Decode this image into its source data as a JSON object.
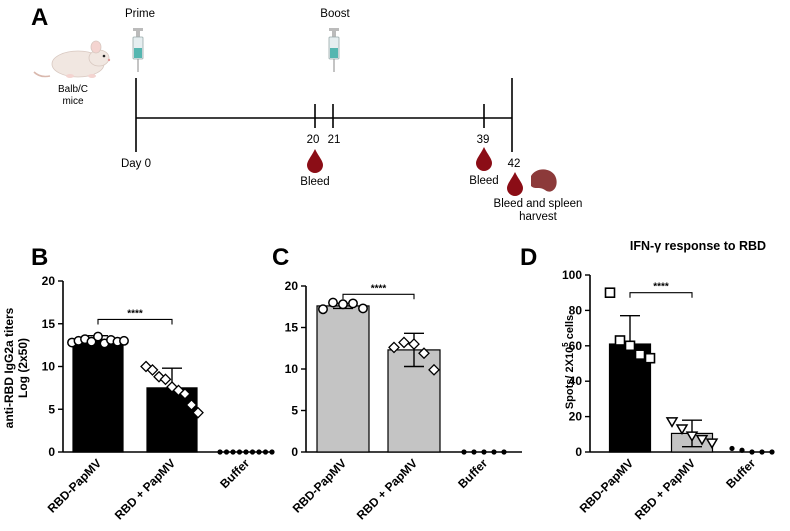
{
  "panels": {
    "A": "A",
    "B": "B",
    "C": "C",
    "D": "D"
  },
  "timeline": {
    "mouse_label_line1": "Balb/C",
    "mouse_label_line2": "mice",
    "prime": "Prime",
    "boost": "Boost",
    "day0": "Day 0",
    "d20": "20",
    "d21": "21",
    "d39": "39",
    "d42": "42",
    "bleed1": "Bleed",
    "bleed2": "Bleed",
    "final_line1": "Bleed and spleen",
    "final_line2": "harvest"
  },
  "colors": {
    "black_bar": "#000000",
    "grey_bar": "#c4c4c4",
    "blood": "#8b0d16",
    "spleen": "#8c3a3a",
    "mouse": "#f1e7e1"
  },
  "chart_data": [
    {
      "id": "B",
      "type": "bar",
      "title": "",
      "ylabel_line1": "anti-RBD IgG2a titers",
      "ylabel_line2": "Log (2x50)",
      "ylim": [
        0,
        20
      ],
      "yticks": [
        0,
        5,
        10,
        15,
        20
      ],
      "categories": [
        "RBD-PapMV",
        "RBD + PapMV",
        "Buffer"
      ],
      "values": [
        13.0,
        7.5,
        0.0
      ],
      "errors": [
        0.6,
        2.3,
        0.0
      ],
      "bar_colors": [
        "#000000",
        "#000000",
        "#000000"
      ],
      "points": [
        [
          12.8,
          13.0,
          13.2,
          12.9,
          13.5,
          12.7,
          13.1,
          12.9,
          13.0
        ],
        [
          10.0,
          9.6,
          8.8,
          8.5,
          7.6,
          7.2,
          6.8,
          5.5,
          4.6
        ],
        [
          0,
          0,
          0,
          0,
          0,
          0,
          0,
          0,
          0
        ]
      ],
      "markers": [
        "circle",
        "diamond",
        "dot"
      ],
      "significance": {
        "from": 0,
        "to": 1,
        "y": 15.5,
        "label": "****"
      }
    },
    {
      "id": "C",
      "type": "bar",
      "title": "",
      "ylabel_line1": "",
      "ylabel_line2": "",
      "ylim": [
        0,
        20
      ],
      "yticks": [
        0,
        5,
        10,
        15,
        20
      ],
      "categories": [
        "RBD-PapMV",
        "RBD + PapMV",
        "Buffer"
      ],
      "values": [
        17.6,
        12.3,
        0.0
      ],
      "errors": [
        0.3,
        2.0,
        0.0
      ],
      "bar_colors": [
        "#c4c4c4",
        "#c4c4c4",
        "#c4c4c4"
      ],
      "points": [
        [
          17.2,
          18.0,
          17.8,
          17.9,
          17.3
        ],
        [
          12.6,
          13.2,
          13.0,
          11.9,
          9.9
        ],
        [
          0,
          0,
          0,
          0,
          0
        ]
      ],
      "markers": [
        "circle",
        "diamond",
        "dot"
      ],
      "significance": {
        "from": 0,
        "to": 1,
        "y": 19.0,
        "label": "****"
      }
    },
    {
      "id": "D",
      "type": "bar",
      "title": "IFN-γ response to RBD",
      "ylabel_line1": "Spots/ 2X10",
      "ylabel_sup": "5",
      "ylabel_line2": " cells",
      "ylim": [
        0,
        100
      ],
      "yticks": [
        0,
        20,
        40,
        60,
        80,
        100
      ],
      "categories": [
        "RBD-PapMV",
        "RBD + PapMV",
        "Buffer"
      ],
      "values": [
        61,
        10.5,
        0.0
      ],
      "errors": [
        16,
        7.5,
        0.0
      ],
      "bar_colors": [
        "#000000",
        "#c4c4c4",
        "#000000"
      ],
      "points": [
        [
          90,
          63,
          60,
          55,
          53
        ],
        [
          17,
          13,
          9,
          7,
          5
        ],
        [
          2,
          1,
          0,
          0,
          0
        ]
      ],
      "markers": [
        "square",
        "triangle",
        "dot"
      ],
      "significance": {
        "from": 0,
        "to": 1,
        "y": 90,
        "label": "****"
      }
    }
  ]
}
